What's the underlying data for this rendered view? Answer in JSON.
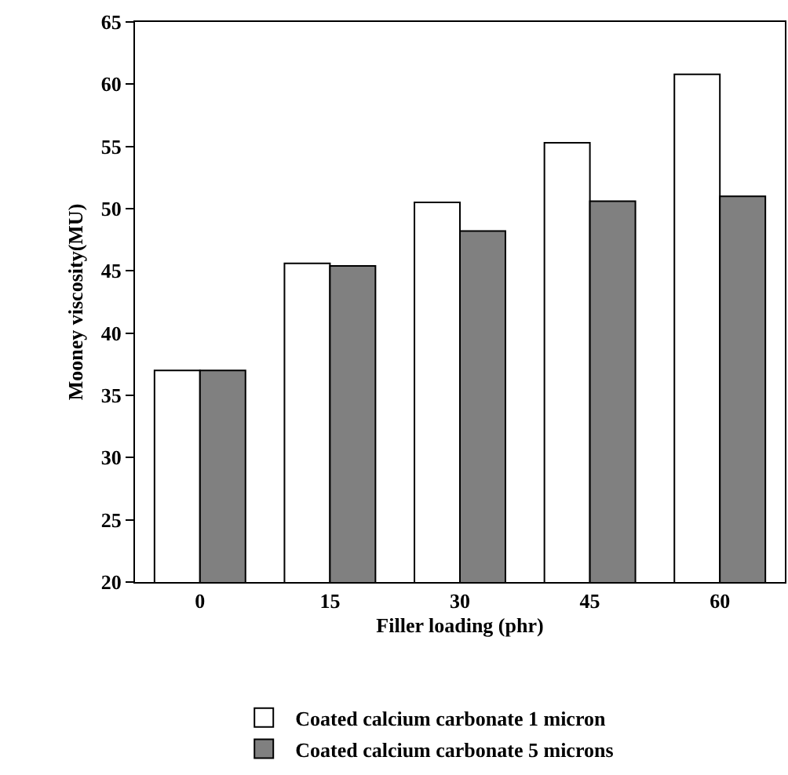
{
  "chart_data": {
    "type": "bar",
    "xlabel": "Filler loading (phr)",
    "ylabel": "Mooney viscosity(MU)",
    "categories": [
      "0",
      "15",
      "30",
      "45",
      "60"
    ],
    "series": [
      {
        "name": "Coated calcium carbonate 1 micron",
        "color": "#ffffff",
        "values": [
          37,
          45.6,
          50.5,
          55.3,
          60.8
        ]
      },
      {
        "name": "Coated calcium carbonate 5 microns",
        "color": "#808080",
        "values": [
          37,
          45.4,
          48.2,
          50.6,
          51
        ]
      }
    ],
    "ylim": [
      20,
      65
    ],
    "yticks": [
      20,
      25,
      30,
      35,
      40,
      45,
      50,
      55,
      60,
      65
    ],
    "grid": false,
    "legend": "bottom"
  }
}
